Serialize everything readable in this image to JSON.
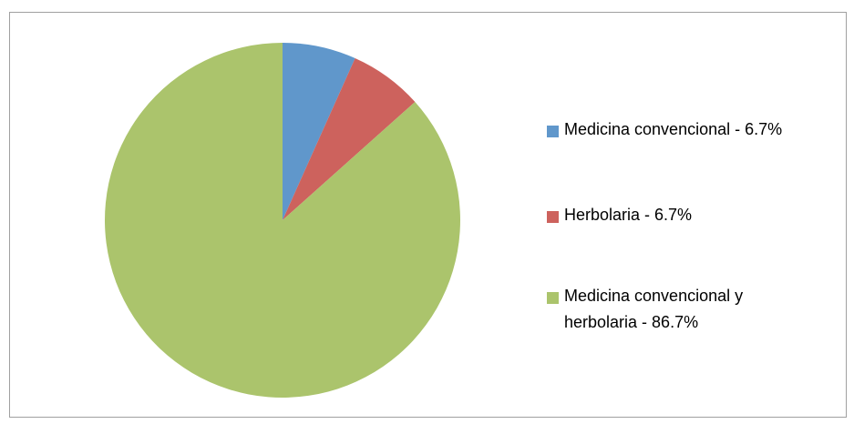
{
  "chart_data": {
    "type": "pie",
    "categories": [
      "Medicina convencional - 6.7%",
      "Herbolaria - 6.7%",
      "Medicina convencional y herbolaria - 86.7%"
    ],
    "values": [
      6.7,
      6.7,
      86.7
    ],
    "colors": [
      "#6097cb",
      "#cd625d",
      "#abc46c"
    ],
    "legend": "right"
  }
}
